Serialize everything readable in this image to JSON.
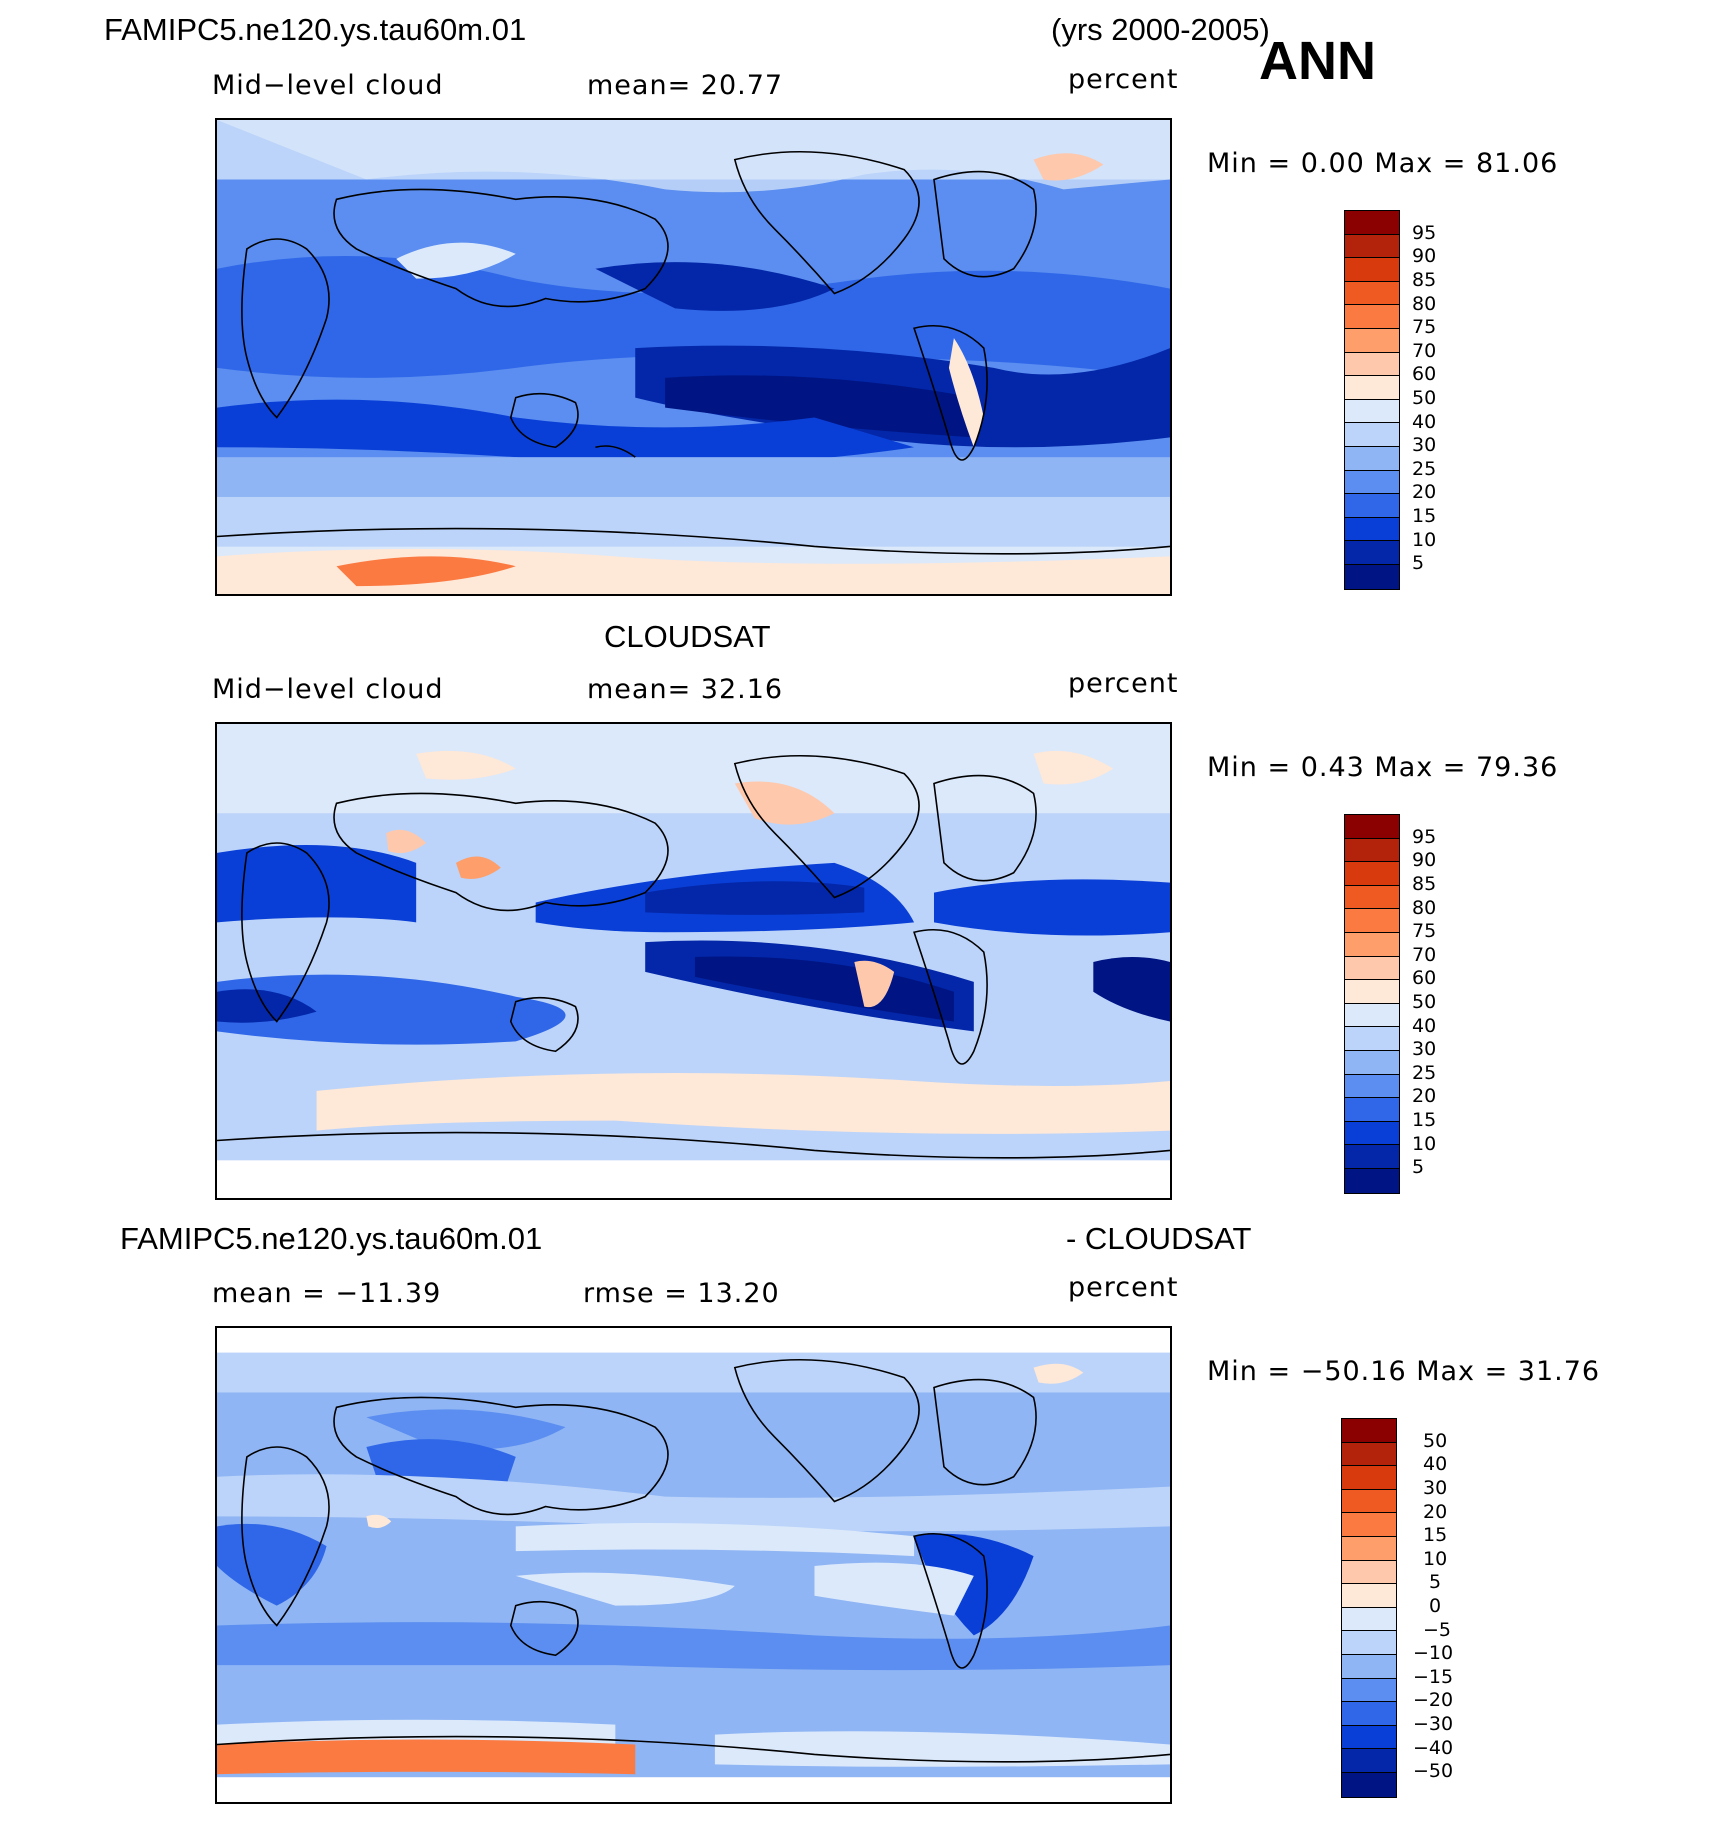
{
  "header": {
    "case_name": "FAMIPC5.ne120.ys.tau60m.01",
    "years": "(yrs 2000-2005)",
    "season": "ANN"
  },
  "panel1": {
    "variable": "Mid−level cloud",
    "mean": "mean=   20.77",
    "units": "percent",
    "minmax": "Min =     0.00  Max =    81.06"
  },
  "panel2": {
    "title": "CLOUDSAT",
    "variable": "Mid−level cloud",
    "mean": "mean=   32.16",
    "units": "percent",
    "minmax": "Min =     0.43  Max =    79.36"
  },
  "panel3": {
    "title_left": "FAMIPC5.ne120.ys.tau60m.01",
    "title_right": "- CLOUDSAT",
    "mean": "mean  =  −11.39",
    "rmse": "rmse  =    13.20",
    "units": "percent",
    "minmax": "Min  =  −50.16  Max  =    31.76"
  },
  "colorbar_levels": [
    "95",
    "90",
    "85",
    "80",
    "75",
    "70",
    "60",
    "50",
    "40",
    "30",
    "25",
    "20",
    "15",
    "10",
    "5"
  ],
  "colorbar_diff_levels": [
    "50",
    "40",
    "30",
    "20",
    "15",
    "10",
    "5",
    "0",
    "−5",
    "−10",
    "−15",
    "−20",
    "−30",
    "−40",
    "−50"
  ],
  "colors": {
    "levels": [
      "#8b0000",
      "#b3230c",
      "#d83a0d",
      "#ee5a22",
      "#fb7a42",
      "#fd9e6b",
      "#fec8ad",
      "#fee8d8",
      "#dbe9fb",
      "#bcd4f9",
      "#8fb5f4",
      "#5b8ef0",
      "#2f67e8",
      "#0a3fd7",
      "#0327a8",
      "#001583"
    ]
  }
}
